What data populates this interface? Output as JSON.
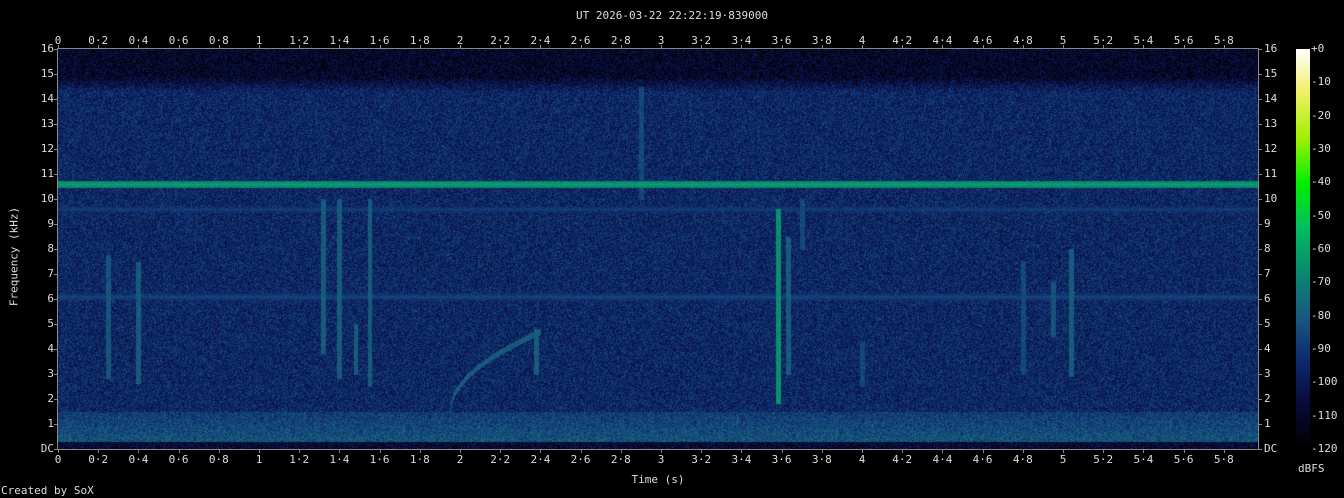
{
  "title": "UT 2026-03-22 22:22:19·839000",
  "credit": "Created by SoX",
  "chart_data": {
    "type": "heatmap",
    "title": "UT 2026-03-22 22:22:19·839000",
    "xlabel": "Time (s)",
    "ylabel": "Frequency (kHz)",
    "xlim": [
      0,
      5.97
    ],
    "ylim": [
      0,
      16
    ],
    "x_ticks": [
      "0",
      "0·2",
      "0·4",
      "0·6",
      "0·8",
      "1",
      "1·2",
      "1·4",
      "1·6",
      "1·8",
      "2",
      "2·2",
      "2·4",
      "2·6",
      "2·8",
      "3",
      "3·2",
      "3·4",
      "3·6",
      "3·8",
      "4",
      "4·2",
      "4·4",
      "4·6",
      "4·8",
      "5",
      "5·2",
      "5·4",
      "5·6",
      "5·8"
    ],
    "y_ticks": [
      "DC",
      "1",
      "2",
      "3",
      "4",
      "5",
      "6",
      "7",
      "8",
      "9",
      "10",
      "11",
      "12",
      "13",
      "14",
      "15",
      "16"
    ],
    "colorbar": {
      "label": "dBFS",
      "range": [
        -120,
        0
      ],
      "ticks": [
        "+0",
        "-10",
        "-20",
        "-30",
        "-40",
        "-50",
        "-60",
        "-70",
        "-80",
        "-90",
        "-100",
        "-110",
        "-120"
      ],
      "colors": [
        "#000000",
        "#0a0a3a",
        "#0d2a6e",
        "#1a5a80",
        "#0a8a70",
        "#00c060",
        "#00f000",
        "#a0f000",
        "#f0f060",
        "#ffffff"
      ]
    },
    "noise_floor_db": -95,
    "features": [
      {
        "kind": "tone",
        "freq_khz": 10.6,
        "level_db": -60
      },
      {
        "kind": "tone",
        "freq_khz": 6.1,
        "level_db": -85
      },
      {
        "kind": "tone",
        "freq_khz": 9.6,
        "level_db": -88
      },
      {
        "kind": "low_band",
        "freq_khz": [
          0,
          1.5
        ],
        "level_db": -80
      },
      {
        "kind": "chirp",
        "time_s": [
          1.95,
          2.4
        ],
        "freq_khz": [
          1.5,
          4.7
        ],
        "level_db": -80
      },
      {
        "kind": "transient",
        "time_s": 3.58,
        "freq_khz": [
          1.8,
          9.6
        ],
        "level_db": -65
      },
      {
        "kind": "transient",
        "time_s": 0.4,
        "freq_khz": [
          2.6,
          7.5
        ],
        "level_db": -80
      },
      {
        "kind": "transient",
        "time_s": 0.25,
        "freq_khz": [
          2.8,
          7.8
        ],
        "level_db": -82
      },
      {
        "kind": "transient",
        "time_s": 1.32,
        "freq_khz": [
          3.8,
          10
        ],
        "level_db": -80
      },
      {
        "kind": "transient",
        "time_s": 1.4,
        "freq_khz": [
          2.8,
          10
        ],
        "level_db": -80
      },
      {
        "kind": "transient",
        "time_s": 1.55,
        "freq_khz": [
          2.5,
          10
        ],
        "level_db": -80
      },
      {
        "kind": "transient",
        "time_s": 1.48,
        "freq_khz": [
          3,
          5
        ],
        "level_db": -80
      },
      {
        "kind": "transient",
        "time_s": 2.38,
        "freq_khz": [
          3,
          4.8
        ],
        "level_db": -80
      },
      {
        "kind": "transient",
        "time_s": 2.9,
        "freq_khz": [
          10,
          14.5
        ],
        "level_db": -85
      },
      {
        "kind": "transient",
        "time_s": 3.63,
        "freq_khz": [
          3,
          8.5
        ],
        "level_db": -80
      },
      {
        "kind": "transient",
        "time_s": 3.7,
        "freq_khz": [
          8,
          10
        ],
        "level_db": -85
      },
      {
        "kind": "transient",
        "time_s": 4.0,
        "freq_khz": [
          2.5,
          4.3
        ],
        "level_db": -85
      },
      {
        "kind": "transient",
        "time_s": 4.8,
        "freq_khz": [
          3,
          7.5
        ],
        "level_db": -85
      },
      {
        "kind": "transient",
        "time_s": 4.95,
        "freq_khz": [
          4.5,
          6.7
        ],
        "level_db": -82
      },
      {
        "kind": "transient",
        "time_s": 5.04,
        "freq_khz": [
          2.9,
          8
        ],
        "level_db": -80
      }
    ]
  }
}
